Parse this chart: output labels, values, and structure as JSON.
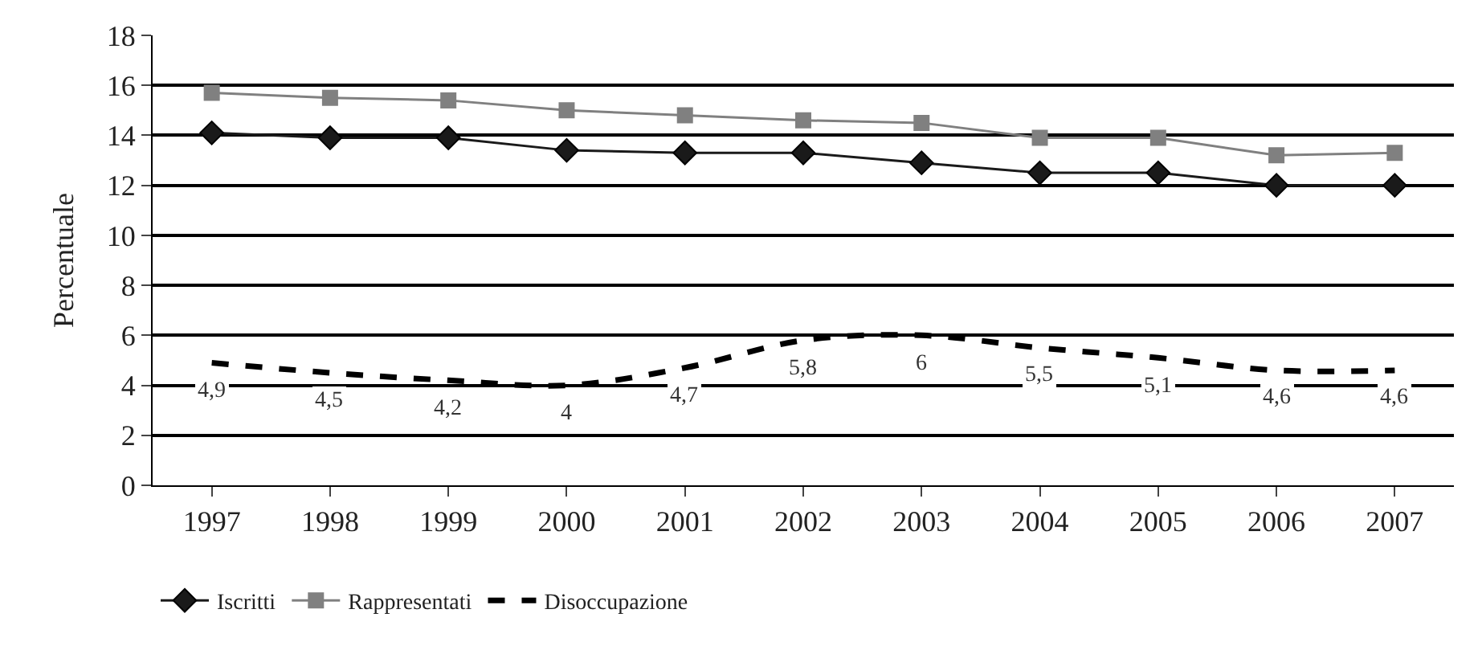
{
  "chart_data": {
    "type": "line",
    "ylabel": "Percentuale",
    "categories": [
      "1997",
      "1998",
      "1999",
      "2000",
      "2001",
      "2002",
      "2003",
      "2004",
      "2005",
      "2006",
      "2007"
    ],
    "series": [
      {
        "name": "Iscritti",
        "color": "#1a1a1a",
        "marker": "diamond",
        "line_style": "solid",
        "values": [
          14.1,
          13.9,
          13.9,
          13.4,
          13.3,
          13.3,
          12.9,
          12.5,
          12.5,
          12.0,
          12.0
        ]
      },
      {
        "name": "Rappresentati",
        "color": "#808080",
        "marker": "square",
        "line_style": "solid",
        "values": [
          15.7,
          15.5,
          15.4,
          15.0,
          14.8,
          14.6,
          14.5,
          13.9,
          13.9,
          13.2,
          13.3
        ]
      },
      {
        "name": "Disoccupazione",
        "color": "#000000",
        "marker": "none",
        "line_style": "dashed",
        "values": [
          4.9,
          4.5,
          4.2,
          4,
          4.7,
          5.8,
          6,
          5.5,
          5.1,
          4.6,
          4.6
        ],
        "value_labels": [
          "4,9",
          "4,5",
          "4,2",
          "4",
          "4,7",
          "5,8",
          "6",
          "5,5",
          "5,1",
          "4,6",
          "4,6"
        ]
      }
    ],
    "ylim": [
      0,
      18
    ],
    "yticks": [
      0,
      2,
      4,
      6,
      8,
      10,
      12,
      14,
      16,
      18
    ],
    "grid": "y",
    "legend": "bottom"
  }
}
